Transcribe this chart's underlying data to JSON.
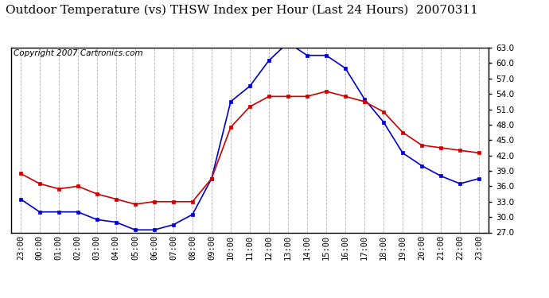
{
  "title": "Outdoor Temperature (vs) THSW Index per Hour (Last 24 Hours)  20070311",
  "copyright": "Copyright 2007 Cartronics.com",
  "x_labels": [
    "23:00",
    "00:00",
    "01:00",
    "02:00",
    "03:00",
    "04:00",
    "05:00",
    "06:00",
    "07:00",
    "08:00",
    "09:00",
    "10:00",
    "11:00",
    "12:00",
    "13:00",
    "14:00",
    "15:00",
    "16:00",
    "17:00",
    "18:00",
    "19:00",
    "20:00",
    "21:00",
    "22:00",
    "23:00"
  ],
  "thsw_data": [
    33.5,
    31.0,
    31.0,
    31.0,
    29.5,
    29.0,
    27.5,
    27.5,
    28.5,
    30.5,
    37.5,
    52.5,
    55.5,
    60.5,
    64.0,
    61.5,
    61.5,
    59.0,
    53.0,
    48.5,
    42.5,
    40.0,
    38.0,
    36.5,
    37.5
  ],
  "temp_data": [
    38.5,
    36.5,
    35.5,
    36.0,
    34.5,
    33.5,
    32.5,
    33.0,
    33.0,
    33.0,
    37.5,
    47.5,
    51.5,
    53.5,
    53.5,
    53.5,
    54.5,
    53.5,
    52.5,
    50.5,
    46.5,
    44.0,
    43.5,
    43.0,
    42.5
  ],
  "thsw_color": "#0000cc",
  "temp_color": "#cc0000",
  "bg_color": "#ffffff",
  "grid_color": "#aaaaaa",
  "ylim_min": 27.0,
  "ylim_max": 63.0,
  "yticks": [
    27.0,
    30.0,
    33.0,
    36.0,
    39.0,
    42.0,
    45.0,
    48.0,
    51.0,
    54.0,
    57.0,
    60.0,
    63.0
  ],
  "title_fontsize": 11,
  "copyright_fontsize": 7.5,
  "tick_fontsize": 7.5
}
